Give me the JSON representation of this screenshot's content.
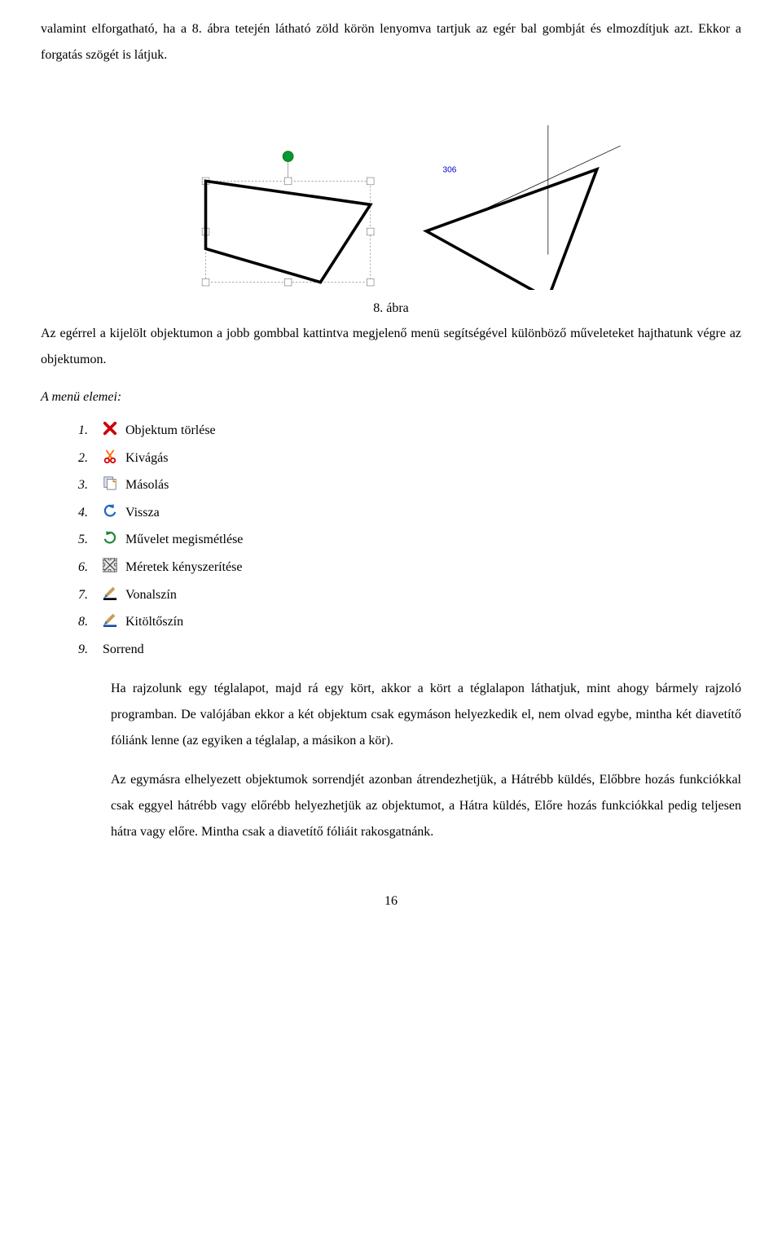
{
  "intro_paragraph": "valamint elforgatható, ha a 8. ábra tetején látható zöld körön lenyomva tartjuk az egér bal gombját és elmozdítjuk azt. Ekkor a forgatás szögét is látjuk.",
  "figure": {
    "caption": "8. ábra",
    "rotation_label": "306",
    "handle_color": "#009933",
    "handle_stroke": "#006600",
    "selection_outline": "#888888",
    "label_color": "#0000cc",
    "triangle_left": [
      "95,175",
      "375,215",
      "290,347",
      "95,290"
    ],
    "triangle_right": [
      "470,260",
      "760,155",
      "677,375"
    ]
  },
  "after_figure_paragraph": "Az egérrel a kijelölt objektumon a jobb gombbal kattintva megjelenő menü segítségével különböző műveleteket hajthatunk végre az objektumon.",
  "menu_lead": "A menü elemei:",
  "menu_items": [
    {
      "num": "1.",
      "label": "Objektum törlése",
      "icon": "delete"
    },
    {
      "num": "2.",
      "label": "Kivágás",
      "icon": "cut"
    },
    {
      "num": "3.",
      "label": "Másolás",
      "icon": "copy"
    },
    {
      "num": "4.",
      "label": "Vissza",
      "icon": "undo"
    },
    {
      "num": "5.",
      "label": "Művelet megismétlése",
      "icon": "redo"
    },
    {
      "num": "6.",
      "label": "Méretek kényszerítése",
      "icon": "resize"
    },
    {
      "num": "7.",
      "label": "Vonalszín",
      "icon": "linecolor"
    },
    {
      "num": "8.",
      "label": "Kitöltőszín",
      "icon": "fillcolor"
    },
    {
      "num": "9.",
      "label": "Sorrend",
      "icon": "none"
    }
  ],
  "sorrend_para1": "Ha rajzolunk egy téglalapot, majd rá egy kört, akkor a kört a téglalapon láthatjuk, mint ahogy bármely rajzoló programban. De valójában ekkor a két objektum csak egymáson helyezkedik el, nem olvad egybe, mintha két diavetítő fóliánk lenne (az egyiken a téglalap, a másikon a kör).",
  "sorrend_para2": "Az egymásra elhelyezett objektumok sorrendjét azonban átrendezhetjük, a Hátrébb küldés, Előbbre hozás funkciókkal csak eggyel hátrébb vagy előrébb helyezhetjük az objektumot, a Hátra küldés, Előre hozás funkciókkal pedig teljesen hátra vagy előre. Mintha csak a diavetítő fóliáit rakosgatnánk.",
  "page_number": "16",
  "icon_colors": {
    "delete": "#cc0000",
    "cut_blade": "#ff6a00",
    "cut_handle": "#d10000",
    "copy_front": "#ffffff",
    "copy_back": "#d7e6ff",
    "copy_border": "#7a7a7a",
    "copy_corner": "#e07a00",
    "undo": "#1f64c8",
    "redo": "#1f8a3b",
    "resize_bg": "#e9e9e9",
    "resize_border": "#4a4a4a",
    "linecolor_brush": "#c89b57",
    "linecolor_tip": "#2a6fbf",
    "linecolor_bar": "#000000",
    "fillcolor_bar": "#1f4ea8"
  }
}
